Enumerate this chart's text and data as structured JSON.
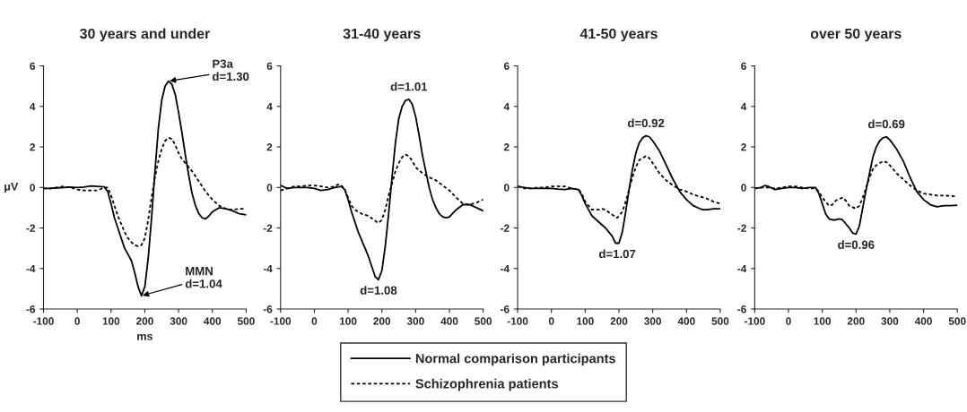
{
  "chart_data": [
    {
      "type": "line",
      "title": "30 years and under",
      "xlabel": "ms",
      "ylabel": "μV",
      "xlim": [
        -100,
        500
      ],
      "ylim": [
        -6,
        6
      ],
      "xticks": [
        -100,
        0,
        100,
        200,
        300,
        400,
        500
      ],
      "yticks": [
        -6,
        -4,
        -2,
        0,
        2,
        4,
        6
      ],
      "grid": false,
      "legend": "bottom",
      "marker": "none",
      "series": [
        {
          "name": "Normal comparison participants",
          "color": "#000000",
          "line_style": "solid",
          "x": [
            -100,
            -80,
            -60,
            -40,
            -20,
            0,
            20,
            40,
            60,
            80,
            90,
            100,
            110,
            120,
            130,
            140,
            150,
            160,
            170,
            180,
            190,
            200,
            210,
            220,
            230,
            240,
            250,
            260,
            270,
            280,
            290,
            300,
            310,
            320,
            330,
            340,
            350,
            360,
            370,
            380,
            390,
            400,
            420,
            440,
            460,
            480,
            500
          ],
          "values": [
            -0.05,
            -0.05,
            -0.02,
            0.0,
            0.02,
            0.0,
            0.02,
            0.07,
            0.05,
            0.03,
            -0.2,
            -0.8,
            -1.5,
            -2.0,
            -2.5,
            -3.0,
            -3.3,
            -3.6,
            -4.2,
            -4.9,
            -5.35,
            -4.9,
            -3.5,
            -1.5,
            0.8,
            2.9,
            4.3,
            5.0,
            5.25,
            5.1,
            4.6,
            3.7,
            2.7,
            1.6,
            0.6,
            -0.3,
            -0.9,
            -1.3,
            -1.5,
            -1.55,
            -1.4,
            -1.2,
            -1.0,
            -1.05,
            -1.15,
            -1.3,
            -1.35
          ]
        },
        {
          "name": "Schizophrenia patients",
          "color": "#000000",
          "line_style": "dotted",
          "x": [
            -100,
            -80,
            -60,
            -40,
            -20,
            0,
            20,
            40,
            60,
            80,
            90,
            100,
            110,
            120,
            130,
            140,
            150,
            160,
            170,
            180,
            190,
            200,
            210,
            220,
            230,
            240,
            250,
            260,
            270,
            280,
            290,
            300,
            310,
            320,
            340,
            360,
            380,
            400,
            420,
            440,
            460,
            480,
            500
          ],
          "values": [
            -0.05,
            -0.05,
            0.0,
            0.05,
            0.0,
            -0.1,
            -0.15,
            -0.15,
            -0.15,
            0.0,
            0.0,
            -0.4,
            -0.9,
            -1.4,
            -1.8,
            -2.2,
            -2.5,
            -2.7,
            -2.85,
            -2.9,
            -2.85,
            -2.5,
            -1.6,
            -0.5,
            0.5,
            1.3,
            1.9,
            2.3,
            2.45,
            2.4,
            2.1,
            1.7,
            1.4,
            1.2,
            0.8,
            0.3,
            -0.2,
            -0.6,
            -0.9,
            -1.05,
            -1.1,
            -1.05,
            -1.05
          ]
        }
      ],
      "annotations": [
        {
          "text": "P3a\nd=1.30",
          "x": 270,
          "y": 5.25
        },
        {
          "text": "MMN\nd=1.04",
          "x": 190,
          "y": -5.35
        }
      ]
    },
    {
      "type": "line",
      "title": "31-40 years",
      "xlim": [
        -100,
        500
      ],
      "ylim": [
        -6,
        6
      ],
      "xticks": [
        -100,
        0,
        100,
        200,
        300,
        400,
        500
      ],
      "yticks": [
        -6,
        -4,
        -2,
        0,
        2,
        4,
        6
      ],
      "grid": false,
      "marker": "none",
      "series": [
        {
          "color": "#000000",
          "line_style": "solid",
          "x": [
            -100,
            -80,
            -60,
            -40,
            -20,
            0,
            20,
            40,
            60,
            80,
            90,
            100,
            110,
            120,
            130,
            140,
            150,
            160,
            170,
            180,
            190,
            200,
            210,
            220,
            230,
            240,
            250,
            260,
            270,
            280,
            290,
            300,
            310,
            320,
            330,
            340,
            350,
            360,
            370,
            380,
            390,
            400,
            420,
            440,
            460,
            480,
            500
          ],
          "values": [
            0.1,
            -0.05,
            0.0,
            0.0,
            0.0,
            -0.05,
            -0.15,
            -0.1,
            0.0,
            0.05,
            -0.1,
            -0.6,
            -1.2,
            -1.7,
            -2.2,
            -2.6,
            -3.0,
            -3.4,
            -3.9,
            -4.4,
            -4.55,
            -4.1,
            -2.9,
            -1.3,
            0.5,
            2.2,
            3.4,
            4.0,
            4.3,
            4.35,
            4.1,
            3.5,
            2.6,
            1.6,
            0.8,
            0.0,
            -0.6,
            -1.0,
            -1.3,
            -1.45,
            -1.5,
            -1.45,
            -1.1,
            -0.85,
            -0.85,
            -1.0,
            -1.15
          ]
        },
        {
          "color": "#000000",
          "line_style": "dotted",
          "x": [
            -100,
            -80,
            -60,
            -40,
            -20,
            0,
            20,
            40,
            60,
            70,
            80,
            90,
            100,
            110,
            120,
            140,
            160,
            180,
            190,
            200,
            210,
            220,
            230,
            240,
            250,
            260,
            270,
            280,
            290,
            300,
            320,
            340,
            360,
            380,
            400,
            420,
            440,
            460,
            480,
            500
          ],
          "values": [
            -0.15,
            -0.05,
            0.05,
            0.05,
            0.1,
            0.1,
            0.05,
            0.0,
            0.05,
            0.15,
            0.1,
            -0.1,
            -0.5,
            -0.9,
            -1.1,
            -1.3,
            -1.4,
            -1.65,
            -1.75,
            -1.6,
            -1.1,
            -0.4,
            0.2,
            0.8,
            1.2,
            1.5,
            1.62,
            1.55,
            1.3,
            1.0,
            0.7,
            0.5,
            0.35,
            0.1,
            -0.15,
            -0.5,
            -0.8,
            -0.85,
            -0.75,
            -0.6
          ]
        }
      ],
      "annotations": [
        {
          "text": "d=1.01",
          "x": 280,
          "y": 4.35
        },
        {
          "text": "d=1.08",
          "x": 190,
          "y": -4.55
        }
      ]
    },
    {
      "type": "line",
      "title": "41-50 years",
      "xlim": [
        -100,
        500
      ],
      "ylim": [
        -6,
        6
      ],
      "xticks": [
        -100,
        0,
        100,
        200,
        300,
        400,
        500
      ],
      "yticks": [
        -6,
        -4,
        -2,
        0,
        2,
        4,
        6
      ],
      "grid": false,
      "marker": "none",
      "series": [
        {
          "color": "#000000",
          "line_style": "solid",
          "x": [
            -100,
            -80,
            -60,
            -40,
            -20,
            0,
            20,
            40,
            60,
            80,
            90,
            100,
            110,
            120,
            140,
            160,
            180,
            190,
            200,
            210,
            220,
            230,
            240,
            250,
            260,
            270,
            280,
            290,
            300,
            320,
            340,
            360,
            380,
            400,
            420,
            440,
            450,
            460,
            480,
            500
          ],
          "values": [
            0.05,
            0.0,
            -0.05,
            -0.05,
            -0.05,
            -0.05,
            -0.08,
            -0.1,
            -0.05,
            -0.1,
            -0.4,
            -0.8,
            -1.1,
            -1.4,
            -1.7,
            -2.0,
            -2.4,
            -2.75,
            -2.75,
            -2.2,
            -1.2,
            -0.1,
            0.9,
            1.7,
            2.2,
            2.45,
            2.55,
            2.5,
            2.3,
            1.8,
            1.1,
            0.4,
            -0.2,
            -0.6,
            -0.9,
            -1.05,
            -1.1,
            -1.1,
            -1.05,
            -1.05
          ]
        },
        {
          "color": "#000000",
          "line_style": "dotted",
          "x": [
            -100,
            -80,
            -60,
            -40,
            -20,
            0,
            20,
            40,
            60,
            80,
            90,
            100,
            120,
            140,
            150,
            160,
            180,
            195,
            210,
            220,
            230,
            240,
            250,
            260,
            280,
            290,
            300,
            320,
            340,
            360,
            380,
            400,
            420,
            440,
            460,
            480,
            500
          ],
          "values": [
            0.05,
            -0.05,
            -0.05,
            0.0,
            0.0,
            0.05,
            0.05,
            0.05,
            -0.05,
            -0.1,
            -0.3,
            -0.7,
            -1.1,
            -1.1,
            -1.05,
            -1.1,
            -1.35,
            -1.5,
            -1.2,
            -0.7,
            -0.1,
            0.5,
            1.0,
            1.35,
            1.55,
            1.45,
            1.2,
            0.7,
            0.35,
            0.1,
            -0.1,
            -0.2,
            -0.35,
            -0.45,
            -0.55,
            -0.7,
            -0.8
          ]
        }
      ],
      "annotations": [
        {
          "text": "d=0.92",
          "x": 280,
          "y": 2.55
        },
        {
          "text": "d=1.07",
          "x": 195,
          "y": -2.75
        }
      ]
    },
    {
      "type": "line",
      "title": "over 50 years",
      "xlim": [
        -100,
        500
      ],
      "ylim": [
        -6,
        6
      ],
      "xticks": [
        -100,
        0,
        100,
        200,
        300,
        400,
        500
      ],
      "yticks": [
        -6,
        -4,
        -2,
        0,
        2,
        4,
        6
      ],
      "grid": false,
      "marker": "none",
      "series": [
        {
          "color": "#000000",
          "line_style": "solid",
          "x": [
            -100,
            -80,
            -70,
            -60,
            -40,
            -20,
            0,
            20,
            40,
            60,
            80,
            90,
            100,
            110,
            120,
            130,
            140,
            150,
            160,
            170,
            180,
            190,
            200,
            210,
            220,
            230,
            240,
            250,
            260,
            270,
            280,
            290,
            300,
            320,
            340,
            360,
            380,
            400,
            420,
            440,
            460,
            480,
            500
          ],
          "values": [
            -0.05,
            0.0,
            0.1,
            0.05,
            -0.1,
            -0.05,
            0.0,
            0.0,
            -0.05,
            0.0,
            0.0,
            -0.3,
            -0.8,
            -1.3,
            -1.55,
            -1.6,
            -1.6,
            -1.55,
            -1.6,
            -1.8,
            -2.0,
            -2.25,
            -2.3,
            -1.9,
            -1.0,
            -0.1,
            0.7,
            1.5,
            2.0,
            2.3,
            2.45,
            2.5,
            2.35,
            1.9,
            1.3,
            0.5,
            -0.2,
            -0.6,
            -0.85,
            -0.95,
            -0.9,
            -0.9,
            -0.88
          ]
        },
        {
          "color": "#000000",
          "line_style": "dotted",
          "x": [
            -100,
            -80,
            -60,
            -40,
            -20,
            0,
            20,
            40,
            60,
            80,
            90,
            100,
            120,
            130,
            140,
            160,
            170,
            180,
            200,
            210,
            220,
            230,
            240,
            250,
            260,
            280,
            290,
            300,
            320,
            340,
            360,
            380,
            400,
            420,
            440,
            460,
            480,
            500
          ],
          "values": [
            -0.05,
            0.0,
            0.0,
            -0.05,
            0.0,
            0.05,
            0.05,
            0.0,
            -0.05,
            -0.05,
            -0.2,
            -0.5,
            -0.9,
            -0.85,
            -0.65,
            -0.5,
            -0.65,
            -0.9,
            -1.05,
            -0.9,
            -0.5,
            0.0,
            0.5,
            0.9,
            1.1,
            1.3,
            1.25,
            1.1,
            0.7,
            0.4,
            0.1,
            -0.15,
            -0.3,
            -0.35,
            -0.4,
            -0.4,
            -0.42,
            -0.45
          ]
        }
      ],
      "annotations": [
        {
          "text": "d=0.69",
          "x": 290,
          "y": 2.5
        },
        {
          "text": "d=0.96",
          "x": 200,
          "y": -2.3
        }
      ]
    }
  ]
}
